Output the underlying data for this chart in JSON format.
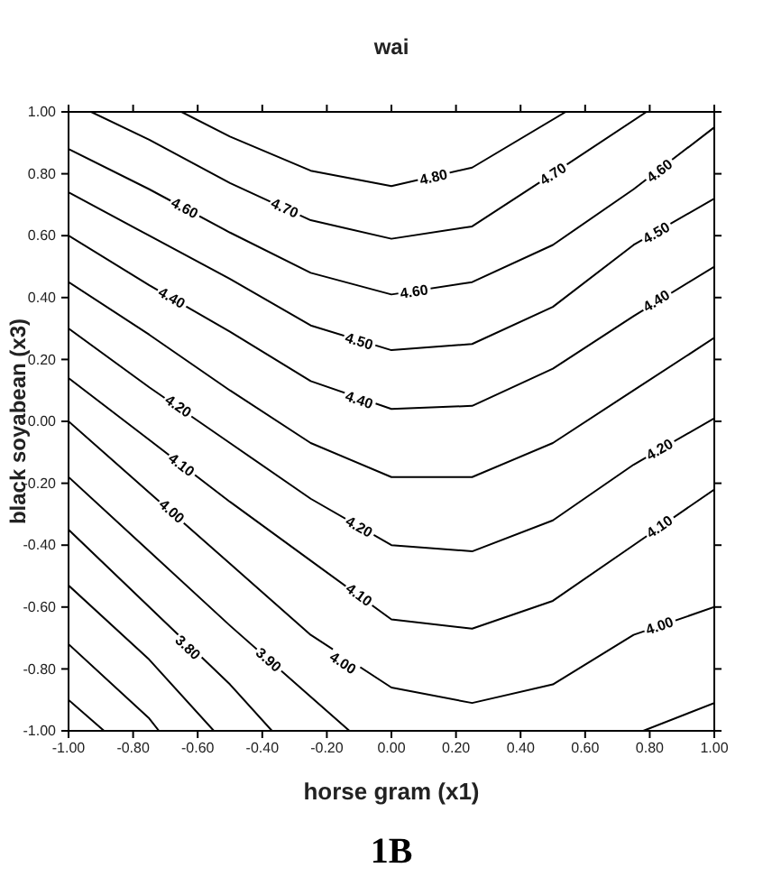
{
  "chart_data": {
    "type": "line",
    "title": "wai",
    "xlabel": "horse gram (x1)",
    "ylabel": "black soyabean (x3)",
    "xlim": [
      -1,
      1
    ],
    "ylim": [
      -1,
      1
    ],
    "xticks": [
      {
        "value": -1,
        "label": "-1.00"
      },
      {
        "value": -0.8,
        "label": "-0.80"
      },
      {
        "value": -0.6,
        "label": "-0.60"
      },
      {
        "value": -0.4,
        "label": "-0.40"
      },
      {
        "value": -0.2,
        "label": "-0.20"
      },
      {
        "value": 0,
        "label": "0.00"
      },
      {
        "value": 0.2,
        "label": "0.20"
      },
      {
        "value": 0.4,
        "label": "0.40"
      },
      {
        "value": 0.6,
        "label": "0.60"
      },
      {
        "value": 0.8,
        "label": "0.80"
      },
      {
        "value": 1,
        "label": "1.00"
      }
    ],
    "yticks": [
      {
        "value": -1,
        "label": "-1.00"
      },
      {
        "value": -0.8,
        "label": "-0.80"
      },
      {
        "value": -0.6,
        "label": "-0.60"
      },
      {
        "value": -0.4,
        "label": "-0.40"
      },
      {
        "value": -0.2,
        "label": "-0.20"
      },
      {
        "value": 0,
        "label": "0.00"
      },
      {
        "value": 0.2,
        "label": "0.20"
      },
      {
        "value": 0.4,
        "label": "0.40"
      },
      {
        "value": 0.6,
        "label": "0.60"
      },
      {
        "value": 0.8,
        "label": "0.80"
      },
      {
        "value": 1,
        "label": "1.00"
      }
    ],
    "grid": false,
    "marker": "none",
    "line_style": "solid",
    "series": [
      {
        "color": "#000000",
        "x": [
          -0.65,
          -0.5,
          -0.25,
          0,
          0.25,
          0.54
        ],
        "values": [
          1,
          0.92,
          0.81,
          0.76,
          0.82,
          1
        ]
      },
      {
        "color": "#000000",
        "x": [
          -0.93,
          -0.75,
          -0.5,
          -0.25,
          0,
          0.25,
          0.5,
          0.79
        ],
        "values": [
          1,
          0.91,
          0.77,
          0.65,
          0.59,
          0.63,
          0.8,
          1
        ]
      },
      {
        "color": "#000000",
        "x": [
          -1,
          -0.75,
          -0.5,
          -0.25,
          0,
          0.25,
          0.5,
          0.75,
          1
        ],
        "values": [
          0.88,
          0.75,
          0.61,
          0.48,
          0.41,
          0.45,
          0.57,
          0.75,
          0.95
        ]
      },
      {
        "color": "#000000",
        "x": [
          -1,
          -0.75,
          -0.5,
          -0.25,
          0,
          0.25,
          0.5,
          0.75,
          1
        ],
        "values": [
          0.74,
          0.6,
          0.46,
          0.31,
          0.23,
          0.25,
          0.37,
          0.57,
          0.72
        ]
      },
      {
        "color": "#000000",
        "x": [
          -1,
          -0.75,
          -0.5,
          -0.25,
          0,
          0.25,
          0.5,
          0.75,
          1
        ],
        "values": [
          0.6,
          0.44,
          0.29,
          0.13,
          0.04,
          0.05,
          0.17,
          0.34,
          0.5
        ]
      },
      {
        "color": "#000000",
        "x": [
          -1,
          -0.75,
          -0.5,
          -0.25,
          0,
          0.25,
          0.5,
          0.75,
          1
        ],
        "values": [
          0.45,
          0.28,
          0.1,
          -0.07,
          -0.18,
          -0.18,
          -0.07,
          0.1,
          0.27
        ]
      },
      {
        "color": "#000000",
        "x": [
          -1,
          -0.75,
          -0.5,
          -0.25,
          0,
          0.25,
          0.5,
          0.75,
          1
        ],
        "values": [
          0.3,
          0.11,
          -0.07,
          -0.25,
          -0.4,
          -0.42,
          -0.32,
          -0.14,
          0.01
        ]
      },
      {
        "color": "#000000",
        "x": [
          -1,
          -0.75,
          -0.5,
          -0.25,
          0,
          0.25,
          0.5,
          0.75,
          1
        ],
        "values": [
          0.14,
          -0.06,
          -0.26,
          -0.45,
          -0.64,
          -0.67,
          -0.58,
          -0.4,
          -0.22
        ]
      },
      {
        "color": "#000000",
        "x": [
          -1,
          -0.75,
          -0.5,
          -0.25,
          0,
          0.25,
          0.5,
          0.75,
          1
        ],
        "values": [
          0,
          -0.23,
          -0.46,
          -0.69,
          -0.86,
          -0.91,
          -0.85,
          -0.69,
          -0.6
        ]
      },
      {
        "color": "#000000",
        "x": [
          -1,
          -0.75,
          -0.5,
          -0.25,
          -0.13,
          0.3,
          0.78,
          1
        ],
        "values": [
          -0.18,
          -0.42,
          -0.66,
          -0.89,
          -1,
          null,
          -1,
          -0.91
        ]
      },
      {
        "color": "#000000",
        "x": [
          -1,
          -0.75,
          -0.5,
          -0.37
        ],
        "values": [
          -0.35,
          -0.6,
          -0.85,
          -1
        ]
      },
      {
        "color": "#000000",
        "x": [
          -1,
          -0.75,
          -0.55
        ],
        "values": [
          -0.53,
          -0.77,
          -1
        ]
      },
      {
        "color": "#000000",
        "x": [
          -1,
          -0.75,
          -0.72
        ],
        "values": [
          -0.72,
          -0.96,
          -1
        ]
      },
      {
        "color": "#000000",
        "x": [
          -1,
          -0.89
        ],
        "values": [
          -0.9,
          -1
        ]
      }
    ],
    "annotations": [
      {
        "text": "4.80",
        "x": 0.13,
        "y": 0.79
      },
      {
        "text": "4.70",
        "x": -0.33,
        "y": 0.69
      },
      {
        "text": "4.70",
        "x": 0.5,
        "y": 0.8
      },
      {
        "text": "4.60",
        "x": -0.64,
        "y": 0.69
      },
      {
        "text": "4.60",
        "x": 0.07,
        "y": 0.42
      },
      {
        "text": "4.60",
        "x": 0.83,
        "y": 0.81
      },
      {
        "text": "4.50",
        "x": -0.1,
        "y": 0.26
      },
      {
        "text": "4.50",
        "x": 0.82,
        "y": 0.61
      },
      {
        "text": "4.40",
        "x": -0.68,
        "y": 0.4
      },
      {
        "text": "4.40",
        "x": -0.1,
        "y": 0.07
      },
      {
        "text": "4.40",
        "x": 0.82,
        "y": 0.39
      },
      {
        "text": "4.20",
        "x": -0.66,
        "y": 0.05
      },
      {
        "text": "4.20",
        "x": -0.1,
        "y": -0.34
      },
      {
        "text": "4.20",
        "x": 0.83,
        "y": -0.09
      },
      {
        "text": "4.10",
        "x": -0.65,
        "y": -0.14
      },
      {
        "text": "4.10",
        "x": -0.1,
        "y": -0.56
      },
      {
        "text": "4.10",
        "x": 0.83,
        "y": -0.34
      },
      {
        "text": "4.00",
        "x": -0.68,
        "y": -0.29
      },
      {
        "text": "4.00",
        "x": -0.15,
        "y": -0.78
      },
      {
        "text": "4.00",
        "x": 0.83,
        "y": -0.66
      },
      {
        "text": "3.90",
        "x": -0.38,
        "y": -0.77
      },
      {
        "text": "3.80",
        "x": -0.63,
        "y": -0.73
      },
      "1B"
    ]
  }
}
